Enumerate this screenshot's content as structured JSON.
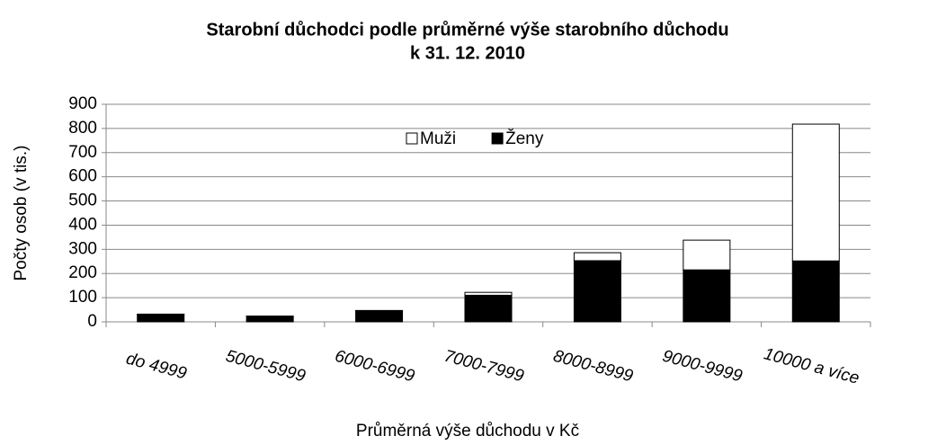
{
  "chart_data": {
    "type": "stacked_bar",
    "title": [
      "Starobní důchodci podle průměrné výše starobního důchodu",
      "k 31. 12. 2010"
    ],
    "x_label": "Průměrná výše důchodu v Kč",
    "y_label": "Počty osob (v tis.)",
    "categories": [
      "do 4999",
      "5000-5999",
      "6000-6999",
      "7000-7999",
      "8000-8999",
      "9000-9999",
      "10000 a více"
    ],
    "series": [
      {
        "name": "Muži",
        "color": "#ffffff",
        "values": [
          2,
          1,
          2,
          12,
          33,
          123,
          566
        ]
      },
      {
        "name": "Ženy",
        "color": "#000000",
        "values": [
          30,
          23,
          45,
          110,
          253,
          215,
          252
        ]
      }
    ],
    "stack_order": [
      1,
      0
    ],
    "ylim": [
      0,
      900
    ],
    "yticks": [
      0,
      100,
      200,
      300,
      400,
      500,
      600,
      700,
      800,
      900
    ],
    "grid": true,
    "legend": "top"
  }
}
